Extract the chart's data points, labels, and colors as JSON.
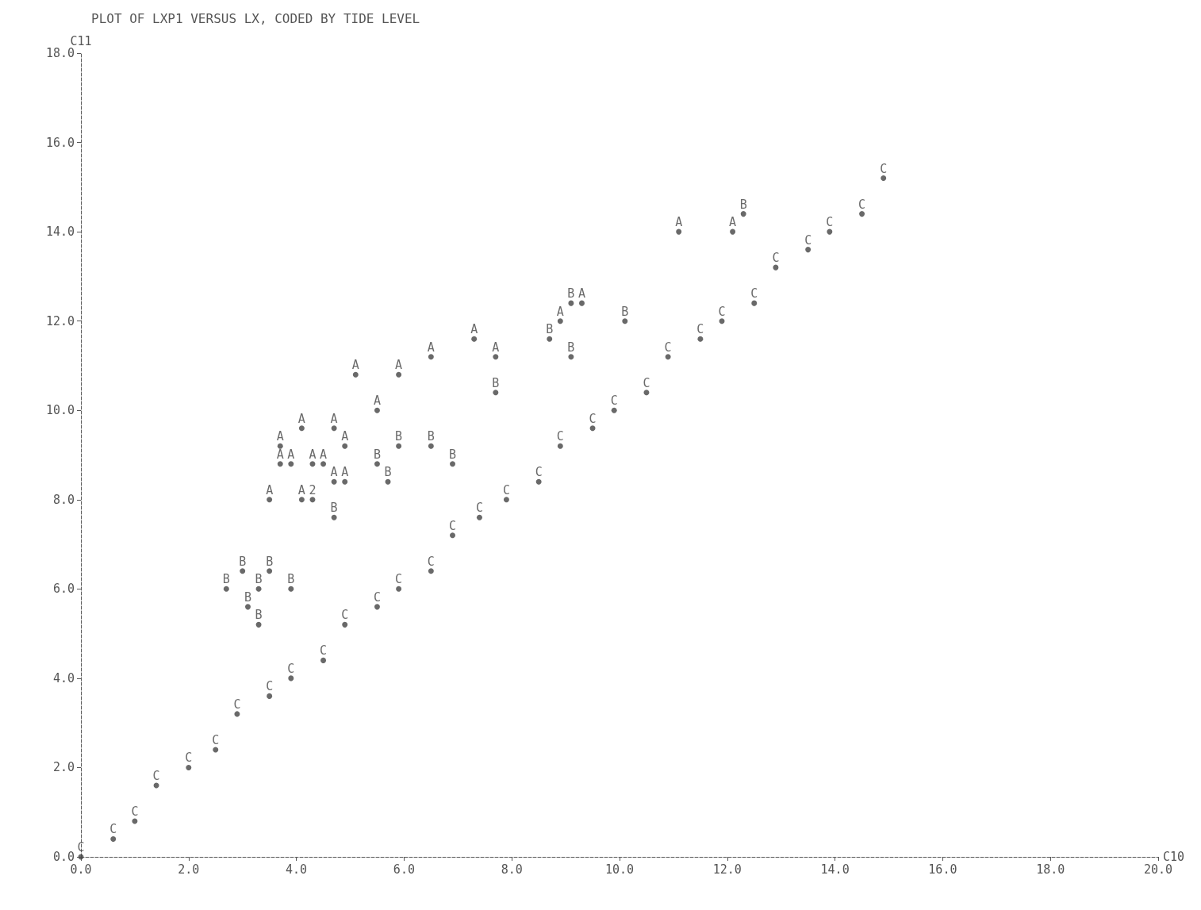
{
  "chart_data": {
    "type": "scatter",
    "title": "PLOT OF LXP1 VERSUS LX, CODED BY TIDE LEVEL",
    "xlabel": "C10",
    "ylabel": "C11",
    "marker": "circle",
    "grid": false,
    "xlim": [
      0,
      20
    ],
    "ylim": [
      0,
      18
    ],
    "xticks": [
      {
        "value": 0,
        "label": "0.0"
      },
      {
        "value": 2,
        "label": "2.0"
      },
      {
        "value": 4,
        "label": "4.0"
      },
      {
        "value": 6,
        "label": "6.0"
      },
      {
        "value": 8,
        "label": "8.0"
      },
      {
        "value": 10,
        "label": "10.0"
      },
      {
        "value": 12,
        "label": "12.0"
      },
      {
        "value": 14,
        "label": "14.0"
      },
      {
        "value": 16,
        "label": "16.0"
      },
      {
        "value": 18,
        "label": "18.0"
      },
      {
        "value": 20,
        "label": "20.0"
      }
    ],
    "yticks": [
      {
        "value": 0,
        "label": "0.0"
      },
      {
        "value": 2,
        "label": "2.0"
      },
      {
        "value": 4,
        "label": "4.0"
      },
      {
        "value": 6,
        "label": "6.0"
      },
      {
        "value": 8,
        "label": "8.0"
      },
      {
        "value": 10,
        "label": "10.0"
      },
      {
        "value": 12,
        "label": "12.0"
      },
      {
        "value": 14,
        "label": "14.0"
      },
      {
        "value": 16,
        "label": "16.0"
      },
      {
        "value": 18,
        "label": "18.0"
      }
    ],
    "series": [
      {
        "name": "A",
        "color": "#444444",
        "x": [
          11.1,
          12.1,
          8.9,
          9.3,
          7.3,
          7.7,
          6.5,
          5.1,
          5.9,
          5.5,
          4.1,
          4.7,
          3.7,
          4.9,
          3.7,
          3.9,
          4.3,
          4.5,
          4.7,
          4.9,
          3.5,
          4.1
        ],
        "values": [
          14.0,
          14.0,
          12.0,
          12.4,
          11.6,
          11.2,
          11.2,
          10.8,
          10.8,
          10.0,
          9.6,
          9.6,
          9.2,
          9.2,
          8.8,
          8.8,
          8.8,
          8.8,
          8.4,
          8.4,
          8.0,
          8.0
        ]
      },
      {
        "name": "B",
        "color": "#444444",
        "x": [
          12.3,
          9.1,
          10.1,
          8.7,
          9.1,
          7.7,
          5.9,
          6.5,
          6.9,
          5.5,
          5.7,
          4.7,
          3.0,
          3.5,
          2.7,
          3.3,
          3.9,
          3.1,
          3.3
        ],
        "values": [
          14.4,
          12.4,
          12.0,
          11.6,
          11.2,
          10.4,
          9.2,
          9.2,
          8.8,
          8.8,
          8.4,
          7.6,
          6.4,
          6.4,
          6.0,
          6.0,
          6.0,
          5.6,
          5.2
        ]
      },
      {
        "name": "C",
        "color": "#444444",
        "x": [
          0.0,
          0.6,
          1.0,
          1.4,
          2.0,
          2.5,
          2.9,
          3.5,
          3.9,
          4.5,
          4.9,
          5.5,
          5.9,
          6.5,
          6.9,
          7.4,
          7.9,
          8.5,
          8.9,
          9.5,
          9.9,
          10.5,
          10.9,
          11.5,
          11.9,
          12.5,
          12.9,
          13.5,
          13.9,
          14.5,
          14.9
        ],
        "values": [
          0.0,
          0.4,
          0.8,
          1.6,
          2.0,
          2.4,
          3.2,
          3.6,
          4.0,
          4.4,
          5.2,
          5.6,
          6.0,
          6.4,
          7.2,
          7.6,
          8.0,
          8.4,
          9.2,
          9.6,
          10.0,
          10.4,
          11.2,
          11.6,
          12.0,
          12.4,
          13.2,
          13.6,
          14.0,
          14.4,
          15.2
        ]
      },
      {
        "name": "2",
        "color": "#444444",
        "x": [
          4.3
        ],
        "values": [
          8.0
        ]
      }
    ]
  }
}
